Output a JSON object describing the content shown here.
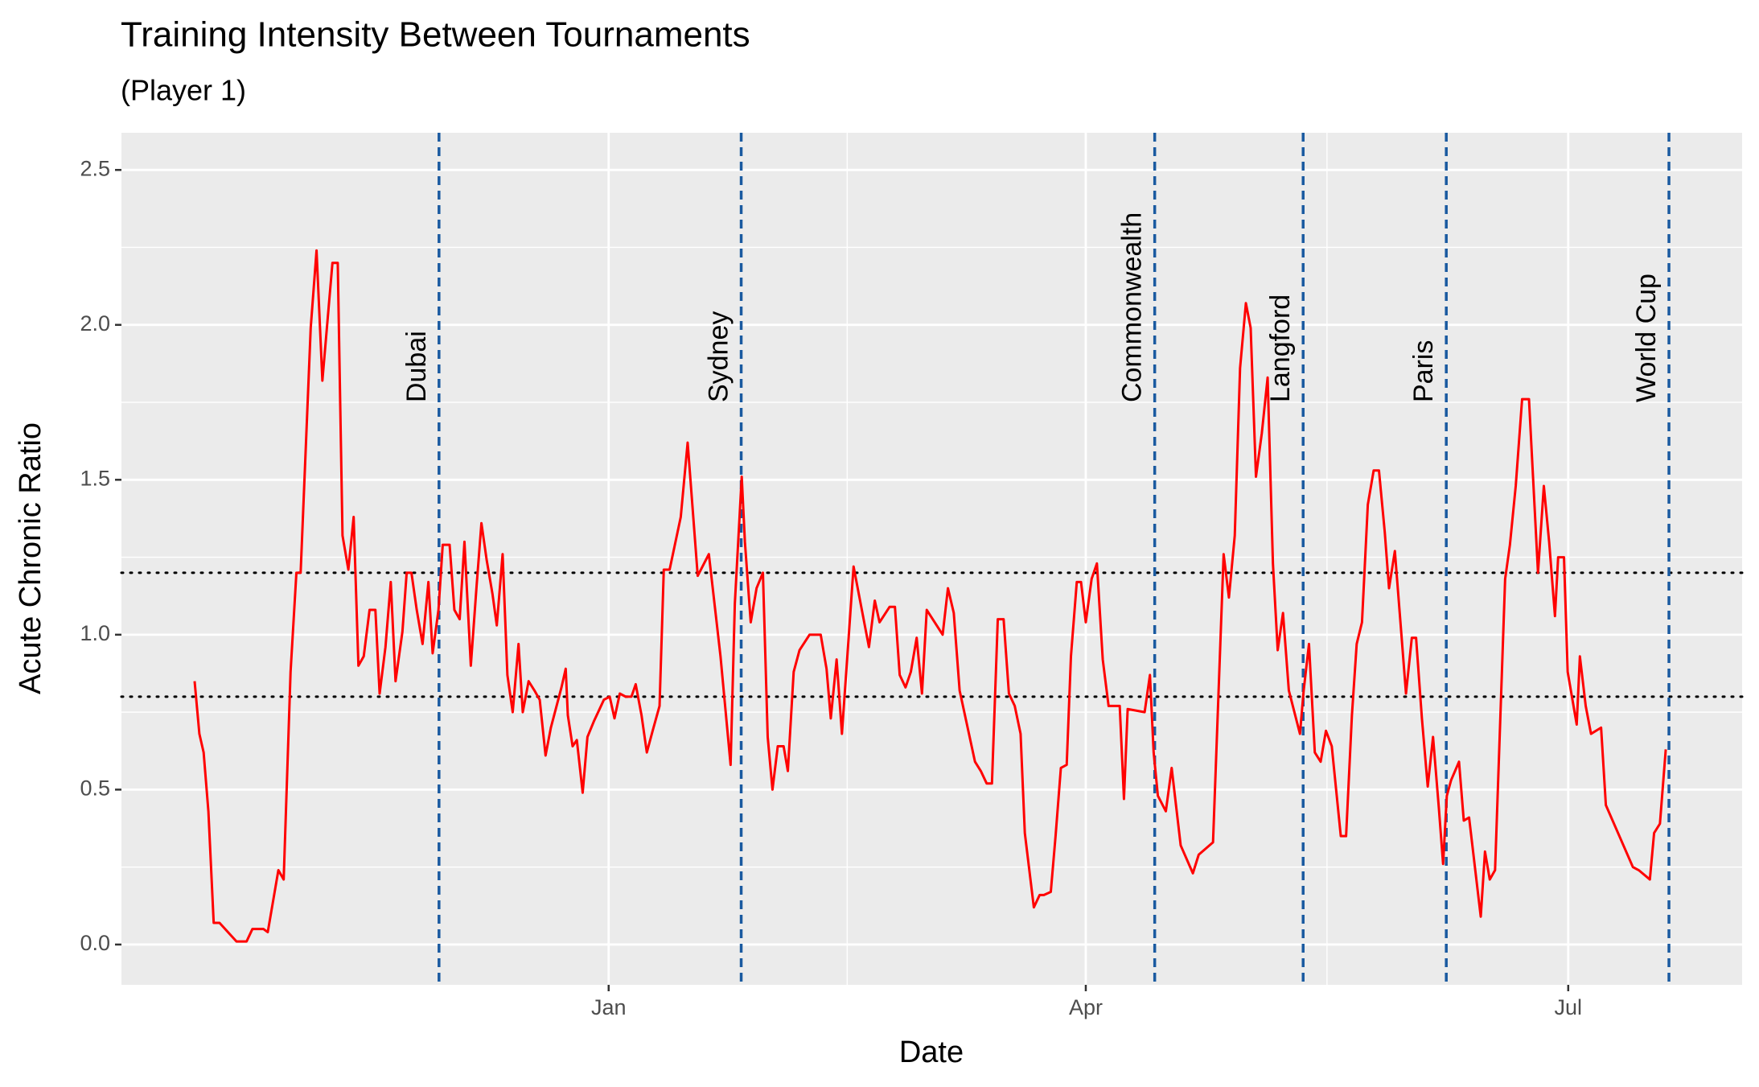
{
  "chart_data": {
    "type": "line",
    "title": "Training Intensity Between Tournaments",
    "subtitle": "(Player 1)",
    "x_label": "Date",
    "y_label": "Acute Chronic Ratio",
    "color": "#ff0000",
    "x": [
      -78.1,
      -77.2,
      -76.4,
      -75.5,
      -74.5,
      -73.4,
      -70.2,
      -68.3,
      -67.2,
      -65.1,
      -64.3,
      -63.4,
      -62.3,
      -61.3,
      -60.0,
      -58.9,
      -58.1,
      -56.2,
      -55.1,
      -54.0,
      -52.1,
      -51.1,
      -50.2,
      -49.1,
      -48.1,
      -47.2,
      -46.2,
      -45.1,
      -44.0,
      -43.2,
      -42.1,
      -41.1,
      -40.2,
      -38.9,
      -38.1,
      -37.2,
      -36.2,
      -35.1,
      -34.0,
      -33.2,
      -32.1,
      -31.3,
      -30.0,
      -29.1,
      -28.1,
      -27.2,
      -26.0,
      -24.9,
      -24.0,
      -23.0,
      -21.9,
      -21.1,
      -20.0,
      -19.1,
      -18.1,
      -17.0,
      -16.2,
      -15.1,
      -14.0,
      -13.0,
      -11.9,
      -10.9,
      -8.9,
      -8.1,
      -7.7,
      -6.8,
      -6.0,
      -4.9,
      -4.0,
      -2.8,
      -0.9,
      0.2,
      1.1,
      2.1,
      3.2,
      4.3,
      5.1,
      6.2,
      7.2,
      8.3,
      9.6,
      10.4,
      11.5,
      13.6,
      14.9,
      16.8,
      18.9,
      21.1,
      23.0,
      23.8,
      25.1,
      25.7,
      26.8,
      27.9,
      29.1,
      30.0,
      30.9,
      31.9,
      33.0,
      33.8,
      34.9,
      36.0,
      37.9,
      40.0,
      41.1,
      41.9,
      43.0,
      44.0,
      46.2,
      47.2,
      49.1,
      50.2,
      51.1,
      53.0,
      54.0,
      54.9,
      56.0,
      57.0,
      58.1,
      59.1,
      60.0,
      63.0,
      64.0,
      65.1,
      66.2,
      69.1,
      70.2,
      71.3,
      72.3,
      73.4,
      74.5,
      75.5,
      76.6,
      77.7,
      78.5,
      80.2,
      81.3,
      82.1,
      83.4,
      84.3,
      85.3,
      86.4,
      87.2,
      88.3,
      89.1,
      90.0,
      91.1,
      92.1,
      93.2,
      94.3,
      96.4,
      97.2,
      97.9,
      101.1,
      102.1,
      102.8,
      103.6,
      105.1,
      106.2,
      107.9,
      110.2,
      111.3,
      114.0,
      116.0,
      117.0,
      118.1,
      119.1,
      120.2,
      121.1,
      122.1,
      123.2,
      124.3,
      125.3,
      126.2,
      127.2,
      128.3,
      130.4,
      131.1,
      132.1,
      133.2,
      134.3,
      135.3,
      136.4,
      138.1,
      139.1,
      140.2,
      141.1,
      142.1,
      143.2,
      144.3,
      145.3,
      146.4,
      147.2,
      148.3,
      149.4,
      150.4,
      151.5,
      152.3,
      153.4,
      154.5,
      155.5,
      156.6,
      157.4,
      158.1,
      158.9,
      160.4,
      161.3,
      162.3,
      164.5,
      165.3,
      166.2,
      167.2,
      169.1,
      170.0,
      171.1,
      172.3,
      173.6,
      175.3,
      176.4,
      177.4,
      178.5,
      179.1,
      180.2,
      180.9,
      182.6,
      183.2,
      184.3,
      185.3,
      187.2,
      188.1,
      193.2,
      194.3,
      196.4,
      197.2,
      198.3,
      199.4
    ],
    "values": [
      0.85,
      0.68,
      0.62,
      0.43,
      0.07,
      0.07,
      0.01,
      0.01,
      0.05,
      0.05,
      0.04,
      0.13,
      0.24,
      0.21,
      0.88,
      1.2,
      1.2,
      1.99,
      2.24,
      1.82,
      2.2,
      2.2,
      1.32,
      1.21,
      1.38,
      0.9,
      0.93,
      1.08,
      1.08,
      0.81,
      0.96,
      1.17,
      0.85,
      1.01,
      1.2,
      1.2,
      1.08,
      0.97,
      1.17,
      0.94,
      1.08,
      1.29,
      1.29,
      1.08,
      1.05,
      1.3,
      0.9,
      1.16,
      1.36,
      1.24,
      1.13,
      1.03,
      1.26,
      0.87,
      0.75,
      0.97,
      0.75,
      0.85,
      0.82,
      0.79,
      0.61,
      0.7,
      0.83,
      0.89,
      0.74,
      0.64,
      0.66,
      0.49,
      0.67,
      0.72,
      0.79,
      0.8,
      0.73,
      0.81,
      0.8,
      0.8,
      0.84,
      0.74,
      0.62,
      0.69,
      0.77,
      1.21,
      1.21,
      1.38,
      1.62,
      1.19,
      1.26,
      0.93,
      0.58,
      1.1,
      1.51,
      1.3,
      1.04,
      1.15,
      1.2,
      0.67,
      0.5,
      0.64,
      0.64,
      0.56,
      0.88,
      0.95,
      1.0,
      1.0,
      0.89,
      0.73,
      0.92,
      0.68,
      1.22,
      1.13,
      0.96,
      1.11,
      1.04,
      1.09,
      1.09,
      0.87,
      0.83,
      0.88,
      0.99,
      0.81,
      1.08,
      1.0,
      1.15,
      1.07,
      0.82,
      0.59,
      0.56,
      0.52,
      0.52,
      1.05,
      1.05,
      0.81,
      0.77,
      0.68,
      0.36,
      0.12,
      0.16,
      0.16,
      0.17,
      0.35,
      0.57,
      0.58,
      0.93,
      1.17,
      1.17,
      1.04,
      1.18,
      1.23,
      0.92,
      0.77,
      0.77,
      0.47,
      0.76,
      0.75,
      0.87,
      0.62,
      0.48,
      0.43,
      0.57,
      0.32,
      0.23,
      0.29,
      0.33,
      1.26,
      1.12,
      1.32,
      1.86,
      2.07,
      1.99,
      1.51,
      1.65,
      1.83,
      1.23,
      0.95,
      1.07,
      0.82,
      0.68,
      0.82,
      0.97,
      0.62,
      0.59,
      0.69,
      0.64,
      0.35,
      0.35,
      0.74,
      0.97,
      1.04,
      1.42,
      1.53,
      1.53,
      1.33,
      1.15,
      1.27,
      1.03,
      0.81,
      0.99,
      0.99,
      0.73,
      0.51,
      0.67,
      0.44,
      0.26,
      0.48,
      0.53,
      0.59,
      0.4,
      0.41,
      0.09,
      0.3,
      0.21,
      0.24,
      1.18,
      1.29,
      1.48,
      1.76,
      1.76,
      1.2,
      1.48,
      1.3,
      1.06,
      1.25,
      1.25,
      0.88,
      0.71,
      0.93,
      0.77,
      0.68,
      0.7,
      0.45,
      0.25,
      0.24,
      0.21,
      0.36,
      0.39,
      0.63
    ],
    "xlim": [
      -91.9,
      213.8
    ],
    "xticks": [
      {
        "value": 0,
        "label": "Jan"
      },
      {
        "value": 90,
        "label": "Apr"
      },
      {
        "value": 181,
        "label": "Jul"
      }
    ],
    "ylim": [
      -0.13,
      2.62
    ],
    "yticks": [
      {
        "value": 0,
        "label": "0.0"
      },
      {
        "value": 0.5,
        "label": "0.5"
      },
      {
        "value": 1,
        "label": "1.0"
      },
      {
        "value": 1.5,
        "label": "1.5"
      },
      {
        "value": 2,
        "label": "2.0"
      },
      {
        "value": 2.5,
        "label": "2.5"
      }
    ],
    "hlines": [
      0.8,
      1.2
    ],
    "events": [
      {
        "label": "Dubai",
        "x": -32
      },
      {
        "label": "Sydney",
        "x": 25
      },
      {
        "label": "Commonwealth",
        "x": 103
      },
      {
        "label": "Langford",
        "x": 131
      },
      {
        "label": "Paris",
        "x": 158
      },
      {
        "label": "World Cup",
        "x": 200
      }
    ],
    "event_color": "#1a5aa0",
    "grid": true
  }
}
